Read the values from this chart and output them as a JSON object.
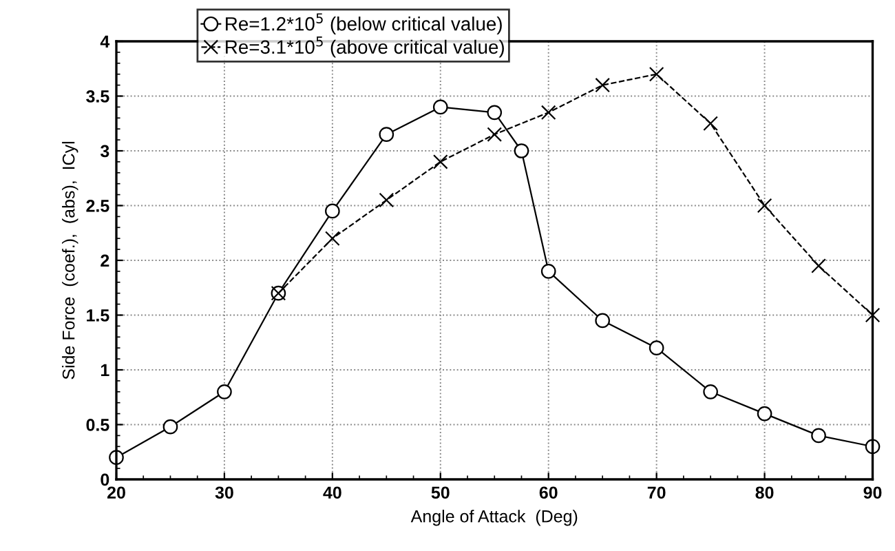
{
  "chart_data": {
    "type": "line",
    "xlabel": "Angle of Attack  (Deg)",
    "ylabel": "Side Force  (coef.),  (abs),  ICyl",
    "xlim": [
      20,
      90
    ],
    "xticks": [
      20,
      30,
      40,
      50,
      60,
      70,
      80,
      90
    ],
    "ylim": [
      0,
      4
    ],
    "yticks": [
      0,
      0.5,
      1,
      1.5,
      2,
      2.5,
      3,
      3.5,
      4
    ],
    "grid": true,
    "legend": "top left",
    "series": [
      {
        "name": "Re=1.2*10$^{5}$ (below critical value)",
        "color": "#000000",
        "marker": "circle",
        "line_style": "solid",
        "x": [
          20,
          25,
          30,
          35,
          40,
          45,
          50,
          55,
          57.5,
          60,
          65,
          70,
          75,
          80,
          85,
          90
        ],
        "values": [
          0.2,
          0.48,
          0.8,
          1.7,
          2.45,
          3.15,
          3.4,
          3.35,
          3.0,
          1.9,
          1.45,
          1.2,
          0.8,
          0.6,
          0.4,
          0.3
        ]
      },
      {
        "name": "Re=3.1*10$^{5}$ (above critical value)",
        "color": "#000000",
        "marker": "cross",
        "line_style": "dashed",
        "x": [
          35,
          40,
          45,
          50,
          55,
          60,
          65,
          70,
          75,
          80,
          85,
          90
        ],
        "values": [
          1.7,
          2.2,
          2.55,
          2.9,
          3.15,
          3.35,
          3.6,
          3.7,
          3.25,
          2.5,
          1.95,
          1.5
        ]
      }
    ]
  }
}
